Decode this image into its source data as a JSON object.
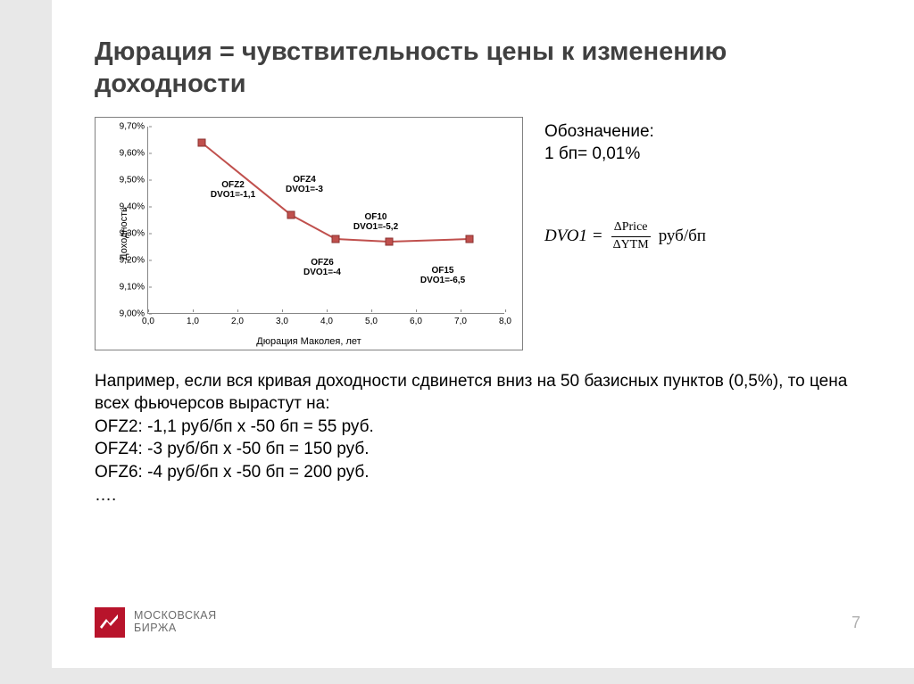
{
  "title": "Дюрация = чувствительность цены к изменению доходности",
  "side": {
    "label_line1": "Обозначение:",
    "label_line2": "1 бп= 0,01%",
    "formula_lhs": "DVO1 =",
    "formula_num": "ΔPrice",
    "formula_den": "ΔYTM",
    "formula_unit": "руб/бп"
  },
  "paragraph": {
    "intro": "Например, если вся кривая доходности сдвинется вниз на 50 базисных пунктов (0,5%), то цена всех фьючерсов вырастут на:",
    "l1": "OFZ2: -1,1 руб/бп x -50 бп = 55 руб.",
    "l2": "OFZ4: -3 руб/бп x -50 бп = 150 руб.",
    "l3": "OFZ6: -4 руб/бп  x -50 бп = 200 руб.",
    "l4": "…."
  },
  "footer": {
    "brand1": "МОСКОВСКАЯ",
    "brand2": "БИРЖА",
    "brand_color": "#b8142b"
  },
  "page_number": "7",
  "chart": {
    "type": "line-scatter",
    "ylabel": "Доходность",
    "xlabel": "Дюрация Маколея, лет",
    "xlim": [
      0.0,
      8.0
    ],
    "ylim": [
      9.0,
      9.7
    ],
    "xtick_step": 1.0,
    "ytick_step": 0.1,
    "xtick_labels": [
      "0,0",
      "1,0",
      "2,0",
      "3,0",
      "4,0",
      "5,0",
      "6,0",
      "7,0",
      "8,0"
    ],
    "ytick_labels": [
      "9,00%",
      "9,10%",
      "9,20%",
      "9,30%",
      "9,40%",
      "9,50%",
      "9,60%",
      "9,70%"
    ],
    "line_color": "#c0504d",
    "marker_fill": "#c0504d",
    "marker_border": "#8a3230",
    "marker_size": 9,
    "line_width": 2,
    "axis_color": "#868686",
    "background": "#ffffff",
    "points": [
      {
        "x": 1.2,
        "y": 9.64,
        "label1": "OFZ2",
        "label2": "DVO1=-1,1",
        "label_dx": 0.7,
        "label_dy_pct": 9.5
      },
      {
        "x": 3.2,
        "y": 9.37,
        "label1": "OFZ4",
        "label2": "DVO1=-3",
        "label_dx": 0.3,
        "label_dy_pct": 9.52
      },
      {
        "x": 4.2,
        "y": 9.28,
        "label1": "OFZ6",
        "label2": "DVO1=-4",
        "label_dx": -0.3,
        "label_dy_pct": 9.21
      },
      {
        "x": 5.4,
        "y": 9.27,
        "label1": "OF10",
        "label2": "DVO1=-5,2",
        "label_dx": -0.3,
        "label_dy_pct": 9.38
      },
      {
        "x": 7.2,
        "y": 9.28,
        "label1": "OF15",
        "label2": "DVO1=-6,5",
        "label_dx": -0.6,
        "label_dy_pct": 9.18
      }
    ]
  }
}
